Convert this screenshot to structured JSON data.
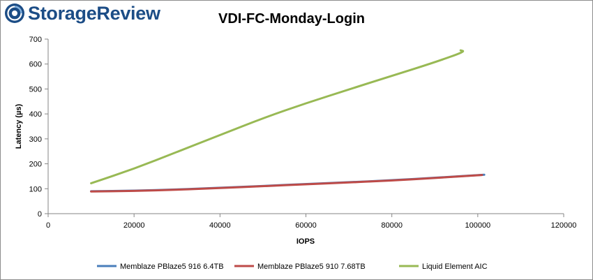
{
  "brand": {
    "name": "StorageReview",
    "logo_icon": "storagereview-logo-icon",
    "color": "#1c4d86"
  },
  "chart_data": {
    "type": "line",
    "title": "VDI-FC-Monday-Login",
    "xlabel": "IOPS",
    "ylabel": "Latency (µs)",
    "xlim": [
      0,
      120000
    ],
    "ylim": [
      0,
      700
    ],
    "xticks": [
      0,
      20000,
      40000,
      60000,
      80000,
      100000,
      120000
    ],
    "yticks": [
      0,
      100,
      200,
      300,
      400,
      500,
      600,
      700
    ],
    "grid": false,
    "legend_position": "bottom",
    "series": [
      {
        "name": "Memblaze PBlaze5 916 6.4TB",
        "color": "#4a7ebb",
        "points": [
          [
            10000,
            90
          ],
          [
            20000,
            92
          ],
          [
            30000,
            97
          ],
          [
            40000,
            104
          ],
          [
            50000,
            111
          ],
          [
            60000,
            119
          ],
          [
            70000,
            126
          ],
          [
            80000,
            134
          ],
          [
            90000,
            144
          ],
          [
            101500,
            156
          ]
        ]
      },
      {
        "name": "Memblaze PBlaze5 910 7.68TB",
        "color": "#be4b48",
        "points": [
          [
            10000,
            89
          ],
          [
            20000,
            91
          ],
          [
            30000,
            96
          ],
          [
            40000,
            103
          ],
          [
            50000,
            110
          ],
          [
            60000,
            118
          ],
          [
            70000,
            125
          ],
          [
            80000,
            133
          ],
          [
            90000,
            143
          ],
          [
            101000,
            155
          ]
        ]
      },
      {
        "name": "Liquid Element AIC",
        "color": "#98b954",
        "points": [
          [
            10000,
            122
          ],
          [
            20000,
            180
          ],
          [
            30000,
            248
          ],
          [
            40000,
            315
          ],
          [
            50000,
            383
          ],
          [
            60000,
            443
          ],
          [
            70000,
            498
          ],
          [
            80000,
            553
          ],
          [
            90000,
            607
          ],
          [
            97000,
            650
          ],
          [
            96000,
            655
          ]
        ]
      }
    ]
  }
}
